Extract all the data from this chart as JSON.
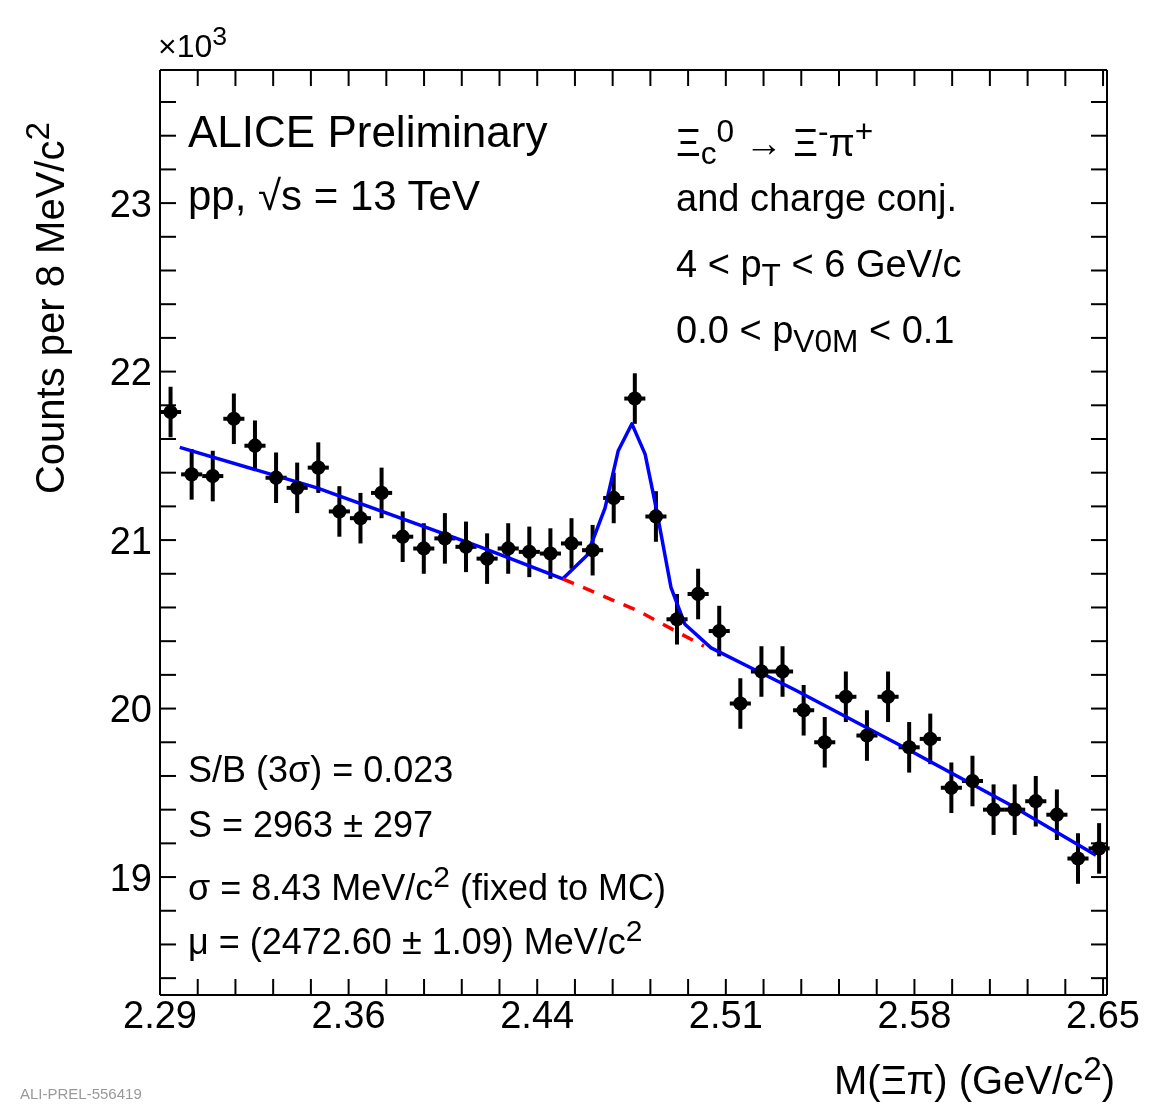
{
  "chart_data": {
    "type": "scatter",
    "xlabel": "M(Ξπ) (GeV/c$^{2}$)",
    "ylabel": "Counts per 8 MeV/c$^{2}$",
    "annotations": [
      "×10$^{3}$",
      "ALICE Preliminary",
      "pp, √s = 13 TeV",
      "Ξ$_{c}$$^{0}$ → Ξ$^{-}$π$^{+}$",
      "and charge conj.",
      "4 < p$_{T}$ < 6 GeV/c",
      "0.0 < p$_{V0M}$ < 0.1",
      "S/B (3σ) = 0.023",
      "S = 2963 ± 297",
      "σ = 8.43 MeV/c$^{2}$ (fixed to MC)",
      "μ = (2472.60 ± 1.09) MeV/c$^{2}$",
      "ALI-PREL-556419"
    ],
    "xlim": [
      2.293,
      2.652
    ],
    "xticks": [
      {
        "value": 2.293,
        "label": "2.29"
      },
      {
        "value": 2.3073,
        "label": null
      },
      {
        "value": 2.3216,
        "label": null
      },
      {
        "value": 2.3359,
        "label": null
      },
      {
        "value": 2.3502,
        "label": null
      },
      {
        "value": 2.3645,
        "label": "2.36"
      },
      {
        "value": 2.3788,
        "label": null
      },
      {
        "value": 2.3931,
        "label": null
      },
      {
        "value": 2.4074,
        "label": null
      },
      {
        "value": 2.4217,
        "label": null
      },
      {
        "value": 2.436,
        "label": "2.44"
      },
      {
        "value": 2.4503,
        "label": null
      },
      {
        "value": 2.4646,
        "label": null
      },
      {
        "value": 2.4789,
        "label": null
      },
      {
        "value": 2.4932,
        "label": null
      },
      {
        "value": 2.5075,
        "label": "2.51"
      },
      {
        "value": 2.5218,
        "label": null
      },
      {
        "value": 2.5361,
        "label": null
      },
      {
        "value": 2.5504,
        "label": null
      },
      {
        "value": 2.5647,
        "label": null
      },
      {
        "value": 2.579,
        "label": "2.58"
      },
      {
        "value": 2.5933,
        "label": null
      },
      {
        "value": 2.6076,
        "label": null
      },
      {
        "value": 2.6219,
        "label": null
      },
      {
        "value": 2.6362,
        "label": null
      },
      {
        "value": 2.6505,
        "label": "2.65"
      }
    ],
    "ylim": [
      18.3,
      23.79
    ],
    "yticks": [
      {
        "value": 18.4,
        "label": null
      },
      {
        "value": 18.6,
        "label": null
      },
      {
        "value": 18.8,
        "label": null
      },
      19,
      {
        "value": 19.2,
        "label": null
      },
      {
        "value": 19.4,
        "label": null
      },
      {
        "value": 19.6,
        "label": null
      },
      {
        "value": 19.8,
        "label": null
      },
      20,
      {
        "value": 20.2,
        "label": null
      },
      {
        "value": 20.4,
        "label": null
      },
      {
        "value": 20.6,
        "label": null
      },
      {
        "value": 20.8,
        "label": null
      },
      21,
      {
        "value": 21.2,
        "label": null
      },
      {
        "value": 21.4,
        "label": null
      },
      {
        "value": 21.6,
        "label": null
      },
      {
        "value": 21.8,
        "label": null
      },
      22,
      {
        "value": 22.2,
        "label": null
      },
      {
        "value": 22.4,
        "label": null
      },
      {
        "value": 22.6,
        "label": null
      },
      {
        "value": 22.8,
        "label": null
      },
      23,
      {
        "value": 23.2,
        "label": null
      },
      {
        "value": 23.4,
        "label": null
      },
      {
        "value": 23.6,
        "label": null
      }
    ],
    "series": [
      {
        "color": "#000000",
        "marker": "circle",
        "x": [
          2.297,
          2.305,
          2.313,
          2.321,
          2.329,
          2.337,
          2.345,
          2.353,
          2.361,
          2.369,
          2.377,
          2.385,
          2.393,
          2.401,
          2.409,
          2.417,
          2.425,
          2.433,
          2.441,
          2.449,
          2.457,
          2.465,
          2.473,
          2.481,
          2.489,
          2.497,
          2.505,
          2.513,
          2.521,
          2.529,
          2.537,
          2.545,
          2.553,
          2.561,
          2.569,
          2.577,
          2.585,
          2.593,
          2.601,
          2.609,
          2.617,
          2.625,
          2.633,
          2.641,
          2.649
        ],
        "values": [
          21.76,
          21.39,
          21.38,
          21.72,
          21.56,
          21.37,
          21.31,
          21.43,
          21.17,
          21.13,
          21.28,
          21.02,
          20.95,
          21.01,
          20.96,
          20.89,
          20.95,
          20.93,
          20.92,
          20.98,
          20.94,
          21.25,
          21.84,
          21.14,
          20.53,
          20.68,
          20.46,
          20.03,
          20.22,
          20.22,
          19.99,
          19.8,
          20.07,
          19.84,
          20.07,
          19.77,
          19.82,
          19.53,
          19.57,
          19.4,
          19.4,
          19.45,
          19.37,
          19.11,
          19.17
        ],
        "errors": [
          0.15,
          0.15,
          0.15,
          0.15,
          0.15,
          0.15,
          0.15,
          0.15,
          0.15,
          0.15,
          0.15,
          0.15,
          0.15,
          0.15,
          0.15,
          0.15,
          0.15,
          0.15,
          0.15,
          0.15,
          0.15,
          0.15,
          0.15,
          0.15,
          0.15,
          0.15,
          0.15,
          0.15,
          0.15,
          0.15,
          0.15,
          0.15,
          0.15,
          0.15,
          0.15,
          0.15,
          0.15,
          0.15,
          0.15,
          0.15,
          0.15,
          0.15,
          0.15,
          0.15,
          0.15
        ],
        "xerrors": [
          0.004,
          0.004,
          0.004,
          0.004,
          0.004,
          0.004,
          0.004,
          0.004,
          0.004,
          0.004,
          0.004,
          0.004,
          0.004,
          0.004,
          0.004,
          0.004,
          0.004,
          0.004,
          0.004,
          0.004,
          0.004,
          0.004,
          0.004,
          0.004,
          0.004,
          0.004,
          0.004,
          0.004,
          0.004,
          0.004,
          0.004,
          0.004,
          0.004,
          0.004,
          0.004,
          0.004,
          0.004,
          0.004,
          0.004,
          0.004,
          0.004,
          0.004,
          0.004,
          0.004,
          0.004
        ]
      },
      {
        "type": "line",
        "color": "#0000ff",
        "marker": "none",
        "line_style": "solid",
        "x": [
          2.3005,
          2.3525,
          2.4143,
          2.4457,
          2.4549,
          2.4617,
          2.4667,
          2.4719,
          2.4769,
          2.4811,
          2.4867,
          2.492,
          2.5019,
          2.5338,
          2.575,
          2.6163,
          2.6478
        ],
        "values": [
          21.55,
          21.31,
          20.96,
          20.77,
          20.91,
          21.19,
          21.53,
          21.69,
          21.51,
          21.19,
          20.72,
          20.5,
          20.36,
          20.11,
          19.77,
          19.42,
          19.13
        ]
      },
      {
        "type": "line",
        "color": "#ff0000",
        "marker": "none",
        "line_style": "dashed",
        "x": [
          2.4457,
          2.4742,
          2.4992
        ],
        "values": [
          20.77,
          20.58,
          20.37
        ]
      }
    ]
  }
}
